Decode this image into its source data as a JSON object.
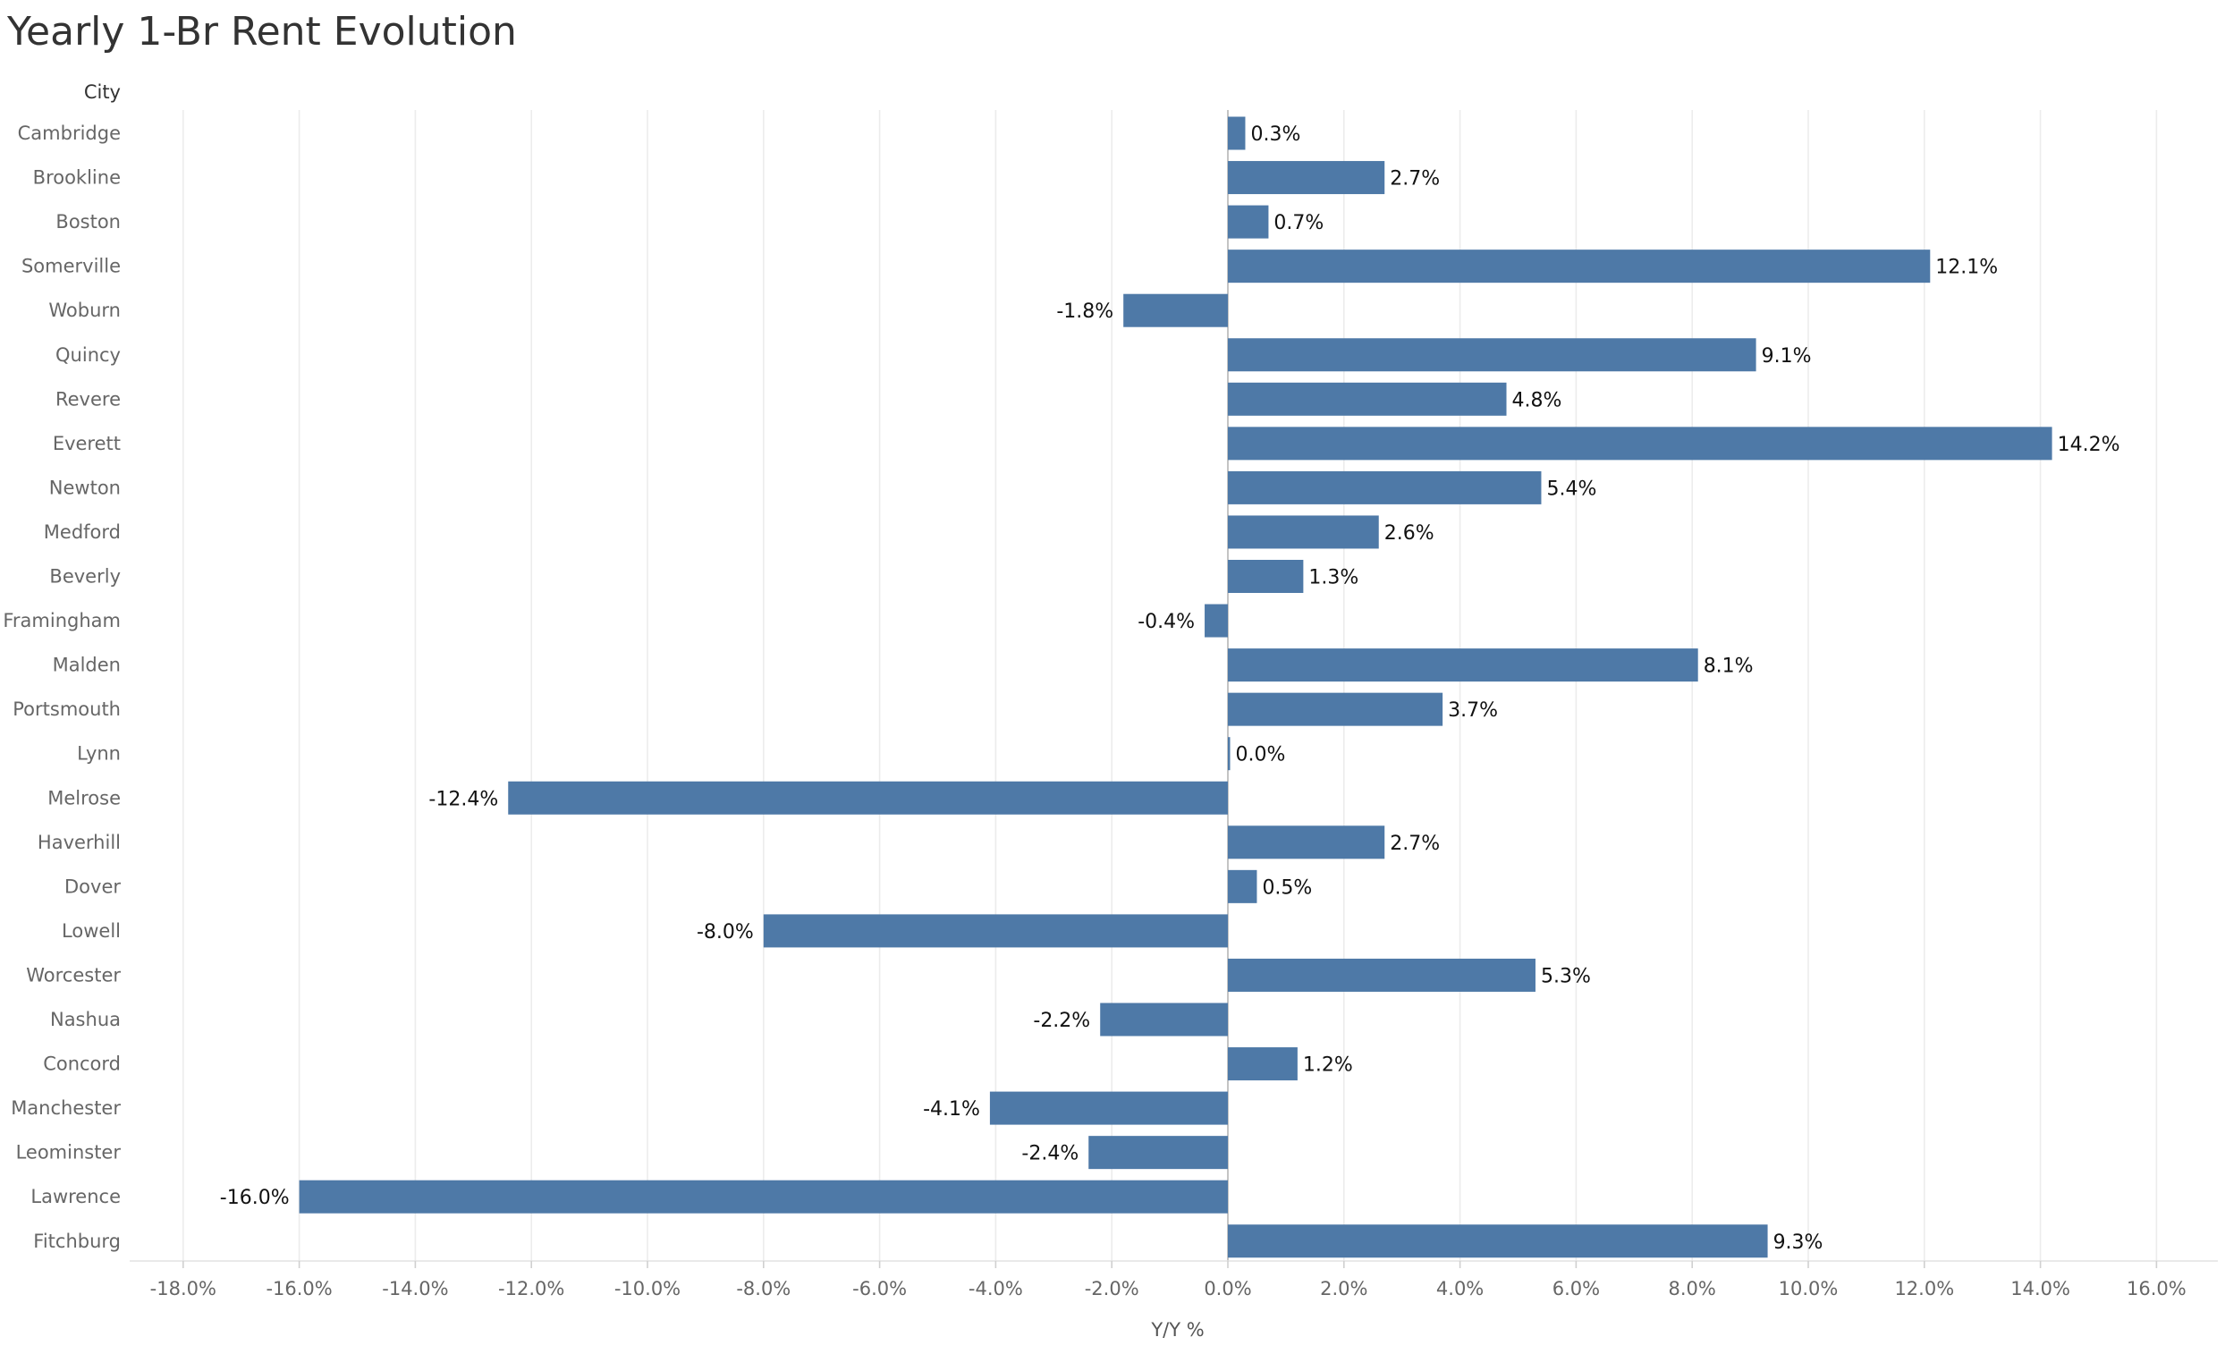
{
  "title": "Yearly 1-Br Rent Evolution",
  "colors": {
    "bar": "#4e79a7",
    "title": "#333333"
  },
  "chart_data": {
    "type": "bar",
    "orientation": "horizontal",
    "title": "Yearly 1-Br Rent Evolution",
    "category_header": "City",
    "xlabel": "Y/Y %",
    "ylabel": "",
    "xlim": [
      -19,
      17
    ],
    "grid": true,
    "legend": "none",
    "x_ticks": [
      -18,
      -16,
      -14,
      -12,
      -10,
      -8,
      -6,
      -4,
      -2,
      0,
      2,
      4,
      6,
      8,
      10,
      12,
      14,
      16
    ],
    "x_tick_labels": [
      "-18.0%",
      "-16.0%",
      "-14.0%",
      "-12.0%",
      "-10.0%",
      "-8.0%",
      "-6.0%",
      "-4.0%",
      "-2.0%",
      "0.0%",
      "2.0%",
      "4.0%",
      "6.0%",
      "8.0%",
      "10.0%",
      "12.0%",
      "14.0%",
      "16.0%"
    ],
    "categories": [
      "Cambridge",
      "Brookline",
      "Boston",
      "Somerville",
      "Woburn",
      "Quincy",
      "Revere",
      "Everett",
      "Newton",
      "Medford",
      "Beverly",
      "Framingham",
      "Malden",
      "Portsmouth",
      "Lynn",
      "Melrose",
      "Haverhill",
      "Dover",
      "Lowell",
      "Worcester",
      "Nashua",
      "Concord",
      "Manchester",
      "Leominster",
      "Lawrence",
      "Fitchburg"
    ],
    "values": [
      0.3,
      2.7,
      0.7,
      12.1,
      -1.8,
      9.1,
      4.8,
      14.2,
      5.4,
      2.6,
      1.3,
      -0.4,
      8.1,
      3.7,
      0.0,
      -12.4,
      2.7,
      0.5,
      -8.0,
      5.3,
      -2.2,
      1.2,
      -4.1,
      -2.4,
      -16.0,
      9.3
    ],
    "value_labels": [
      "0.3%",
      "2.7%",
      "0.7%",
      "12.1%",
      "-1.8%",
      "9.1%",
      "4.8%",
      "14.2%",
      "5.4%",
      "2.6%",
      "1.3%",
      "-0.4%",
      "8.1%",
      "3.7%",
      "0.0%",
      "-12.4%",
      "2.7%",
      "0.5%",
      "-8.0%",
      "5.3%",
      "-2.2%",
      "1.2%",
      "-4.1%",
      "-2.4%",
      "-16.0%",
      "9.3%"
    ]
  }
}
